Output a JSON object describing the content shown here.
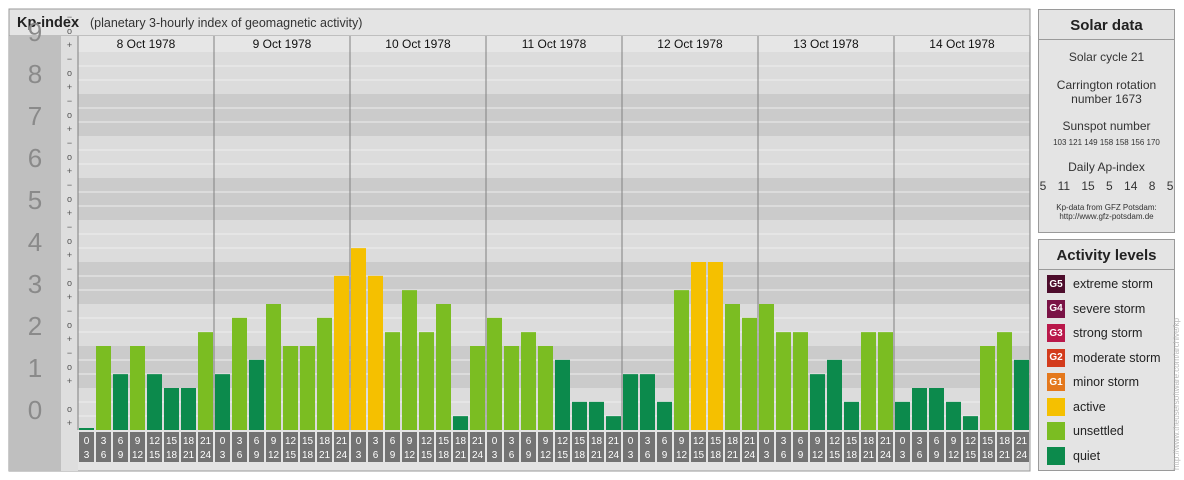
{
  "header": {
    "title": "Kp-index",
    "subtitle": "(planetary 3-hourly index of geomagnetic activity)"
  },
  "chart_data": {
    "type": "bar",
    "title": "Kp-index",
    "subtitle": "(planetary 3-hourly index of geomagnetic activity)",
    "ylim": [
      0,
      9
    ],
    "y_ticks": [
      "0",
      "1",
      "2",
      "3",
      "4",
      "5",
      "6",
      "7",
      "8",
      "9"
    ],
    "sub_ticks": [
      "+",
      "o",
      "−"
    ],
    "days": [
      "8 Oct 1978",
      "9 Oct 1978",
      "10 Oct 1978",
      "11 Oct 1978",
      "12 Oct 1978",
      "13 Oct 1978",
      "14 Oct 1978"
    ],
    "interval_top": [
      "0",
      "3",
      "6",
      "9",
      "12",
      "15",
      "18",
      "21"
    ],
    "interval_bottom": [
      "3",
      "6",
      "9",
      "12",
      "15",
      "18",
      "21",
      "24"
    ],
    "values": [
      [
        0.0,
        2.0,
        1.33,
        2.0,
        1.33,
        1.0,
        1.0,
        2.33
      ],
      [
        1.33,
        2.67,
        1.67,
        3.0,
        2.0,
        2.0,
        2.67,
        3.67
      ],
      [
        4.33,
        3.67,
        2.33,
        3.33,
        2.33,
        3.0,
        0.33,
        2.0
      ],
      [
        2.67,
        2.0,
        2.33,
        2.0,
        1.67,
        0.67,
        0.67,
        0.33
      ],
      [
        1.33,
        1.33,
        0.67,
        3.33,
        4.0,
        4.0,
        3.0,
        2.67
      ],
      [
        3.0,
        2.33,
        2.33,
        1.33,
        1.67,
        0.67,
        2.33,
        2.33
      ],
      [
        0.67,
        1.0,
        1.0,
        0.67,
        0.33,
        2.0,
        2.33,
        1.67
      ]
    ],
    "levels": [
      {
        "min": 0,
        "max": 2,
        "level": "quiet"
      },
      {
        "min": 2,
        "max": 3.5,
        "level": "unsettled"
      },
      {
        "min": 3.5,
        "max": 5,
        "level": "active"
      }
    ],
    "colors": {
      "quiet": "#0c8a4c",
      "unsettled": "#7bbd22",
      "active": "#f5c000",
      "band_dark": "#cbcbcb",
      "band_light": "#dcdcdc",
      "gridline": "#eeeeee",
      "day_divider": "#808080",
      "interval_box": "#737373"
    }
  },
  "solar": {
    "title": "Solar data",
    "cycle": "Solar cycle 21",
    "carrington": "Carrington rotation number 1673",
    "sunspot_label": "Sunspot number",
    "sunspot_values": "103 121 149 158 158 156 170",
    "ap_label": "Daily Ap-index",
    "ap_values": "5 11 15 5 14 8 5",
    "source": "Kp-data from GFZ Potsdam:",
    "source_url": "http://www.gfz-potsdam.de"
  },
  "activity": {
    "title": "Activity levels",
    "items": [
      {
        "badge": "G5",
        "label": "extreme storm",
        "color": "#4d0d2c"
      },
      {
        "badge": "G4",
        "label": "severe storm",
        "color": "#7a1346"
      },
      {
        "badge": "G3",
        "label": "strong storm",
        "color": "#b9184a"
      },
      {
        "badge": "G2",
        "label": "moderate storm",
        "color": "#d33b1c"
      },
      {
        "badge": "G1",
        "label": "minor storm",
        "color": "#e4781c"
      },
      {
        "badge": "",
        "label": "active",
        "color": "#f5c000"
      },
      {
        "badge": "",
        "label": "unsettled",
        "color": "#7bbd22"
      },
      {
        "badge": "",
        "label": "quiet",
        "color": "#0c8a4c"
      }
    ]
  },
  "credit": "http://www.theusersoftware.com/archive/kp"
}
